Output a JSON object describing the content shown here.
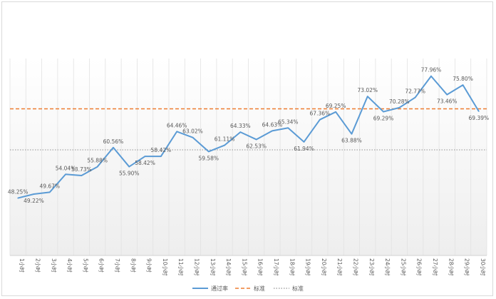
{
  "chart_data": {
    "type": "line",
    "categories": [
      "1小时",
      "2小时",
      "3小时",
      "4小时",
      "5小时",
      "6小时",
      "7小时",
      "8小时",
      "9小时",
      "10小时",
      "11小时",
      "12小时",
      "13小时",
      "14小时",
      "15小时",
      "16小时",
      "17小时",
      "18小时",
      "19小时",
      "20小时",
      "21小时",
      "22小时",
      "23小时",
      "24小时",
      "25小时",
      "26小时",
      "27小时",
      "28小时",
      "29小时",
      "30小时"
    ],
    "series": [
      {
        "name": "通过率",
        "color": "#5b9bd5",
        "style": "solid",
        "values": [
          48.25,
          49.22,
          49.67,
          54.04,
          53.73,
          55.88,
          60.56,
          55.9,
          58.42,
          58.42,
          64.46,
          63.02,
          59.58,
          61.11,
          64.33,
          62.53,
          64.63,
          65.34,
          61.94,
          67.36,
          69.25,
          63.88,
          73.02,
          69.29,
          70.28,
          72.77,
          77.96,
          73.46,
          75.8,
          69.39
        ],
        "labels": [
          "48.25%",
          "49.22%",
          "49.67%",
          "54.04%",
          "53.73%",
          "55.88%",
          "60.56%",
          "55.90%",
          "58.42%",
          "58.42%",
          "64.46%",
          "63.02%",
          "59.58%",
          "61.11%",
          "64.33%",
          "62.53%",
          "64.63%",
          "65.34%",
          "61.94%",
          "67.36%",
          "69.25%",
          "63.88%",
          "73.02%",
          "69.29%",
          "70.28%",
          "72.77%",
          "77.96%",
          "73.46%",
          "75.80%",
          "69.39%"
        ]
      },
      {
        "name": "标准",
        "color": "#ed7d31",
        "style": "dashed",
        "values": [
          70,
          70,
          70,
          70,
          70,
          70,
          70,
          70,
          70,
          70,
          70,
          70,
          70,
          70,
          70,
          70,
          70,
          70,
          70,
          70,
          70,
          70,
          70,
          70,
          70,
          70,
          70,
          70,
          70,
          70
        ]
      },
      {
        "name": "标准",
        "color": "#a5a5a5",
        "style": "dotted",
        "values": [
          60,
          60,
          60,
          60,
          60,
          60,
          60,
          60,
          60,
          60,
          60,
          60,
          60,
          60,
          60,
          60,
          60,
          60,
          60,
          60,
          60,
          60,
          60,
          60,
          60,
          60,
          60,
          60,
          60,
          60
        ]
      }
    ],
    "title": "",
    "xlabel": "",
    "ylabel": "",
    "ylim": [
      40,
      80
    ],
    "grid": "vertical",
    "legend": "bottom-center"
  }
}
